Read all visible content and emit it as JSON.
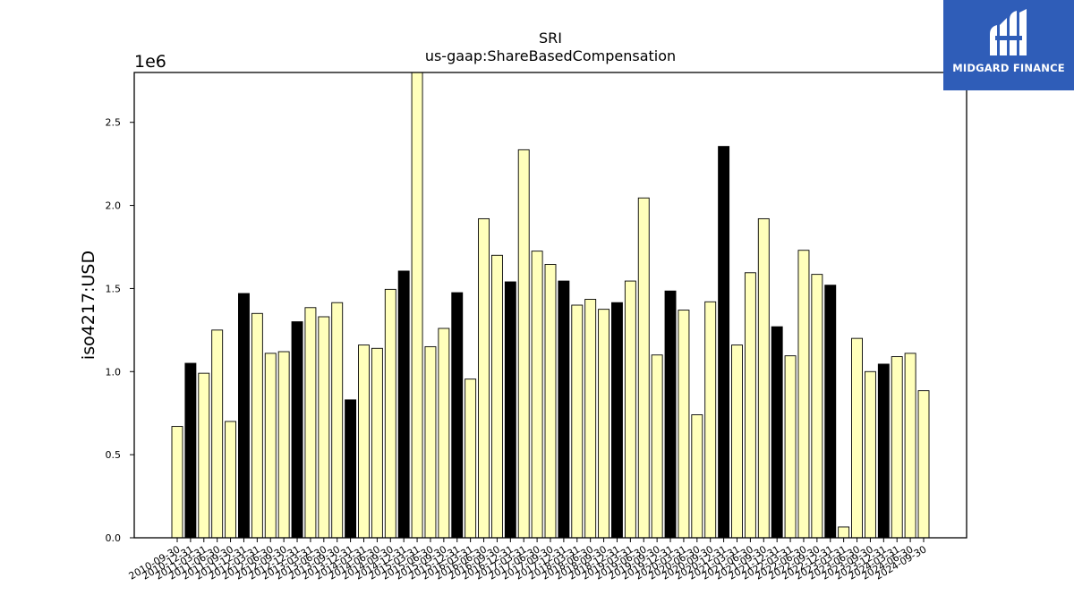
{
  "chart_data": {
    "type": "bar",
    "title": "SRI",
    "subtitle": "us-gaap:ShareBasedCompensation",
    "ylabel": "iso4217:USD",
    "xlabel": "",
    "y_multiplier_label": "1e6",
    "ylim": [
      0,
      2800000
    ],
    "yticks": [
      0.0,
      0.5,
      1.0,
      1.5,
      2.0,
      2.5
    ],
    "grid": false,
    "colors": {
      "quarter": "#ffffbb",
      "annual": "#000000",
      "edge": "#000000"
    },
    "categories": [
      "2010-09-30",
      "2010-12-31",
      "2011-03-31",
      "2011-06-30",
      "2011-09-30",
      "2011-12-31",
      "2012-03-31",
      "2012-06-30",
      "2012-09-30",
      "2012-12-31",
      "2013-03-31",
      "2013-06-30",
      "2013-09-30",
      "2013-12-31",
      "2014-03-31",
      "2014-06-30",
      "2014-09-30",
      "2014-12-31",
      "2015-03-31",
      "2015-06-30",
      "2015-09-30",
      "2015-12-31",
      "2016-03-31",
      "2016-06-30",
      "2016-09-30",
      "2016-12-31",
      "2017-03-31",
      "2017-06-30",
      "2017-09-30",
      "2017-12-31",
      "2018-03-31",
      "2018-06-30",
      "2018-09-30",
      "2018-12-31",
      "2019-03-31",
      "2019-06-30",
      "2019-09-30",
      "2019-12-31",
      "2020-03-31",
      "2020-06-30",
      "2020-09-30",
      "2020-12-31",
      "2021-03-31",
      "2021-06-30",
      "2021-09-30",
      "2021-12-31",
      "2022-03-31",
      "2022-06-30",
      "2022-09-30",
      "2022-12-31",
      "2023-03-31",
      "2023-06-30",
      "2023-09-30",
      "2023-12-31",
      "2024-03-31",
      "2024-06-30",
      "2024-09-30"
    ],
    "values": [
      670000,
      1050000,
      990000,
      1250000,
      700000,
      1470000,
      1350000,
      1110000,
      1120000,
      1300000,
      1385000,
      1330000,
      1415000,
      830000,
      1160000,
      1140000,
      1495000,
      1605000,
      2800000,
      1150000,
      1260000,
      1475000,
      955000,
      1920000,
      1700000,
      1540000,
      2335000,
      1725000,
      1645000,
      1545000,
      1400000,
      1435000,
      1375000,
      1415000,
      1545000,
      2045000,
      1100000,
      1485000,
      1370000,
      740000,
      1420000,
      2355000,
      1160000,
      1595000,
      1920000,
      1270000,
      1095000,
      1730000,
      1585000,
      1520000,
      65000,
      1200000,
      1000000,
      1045000,
      1090000,
      1110000,
      885000
    ],
    "annual": [
      false,
      true,
      false,
      false,
      false,
      true,
      false,
      false,
      false,
      true,
      false,
      false,
      false,
      true,
      false,
      false,
      false,
      true,
      false,
      false,
      false,
      true,
      false,
      false,
      false,
      true,
      false,
      false,
      false,
      true,
      false,
      false,
      false,
      true,
      false,
      false,
      false,
      true,
      false,
      false,
      false,
      true,
      false,
      false,
      false,
      true,
      false,
      false,
      false,
      true,
      false,
      false,
      false,
      true,
      false,
      false,
      false
    ]
  },
  "logo": {
    "text": "MIDGARD FINANCE"
  }
}
